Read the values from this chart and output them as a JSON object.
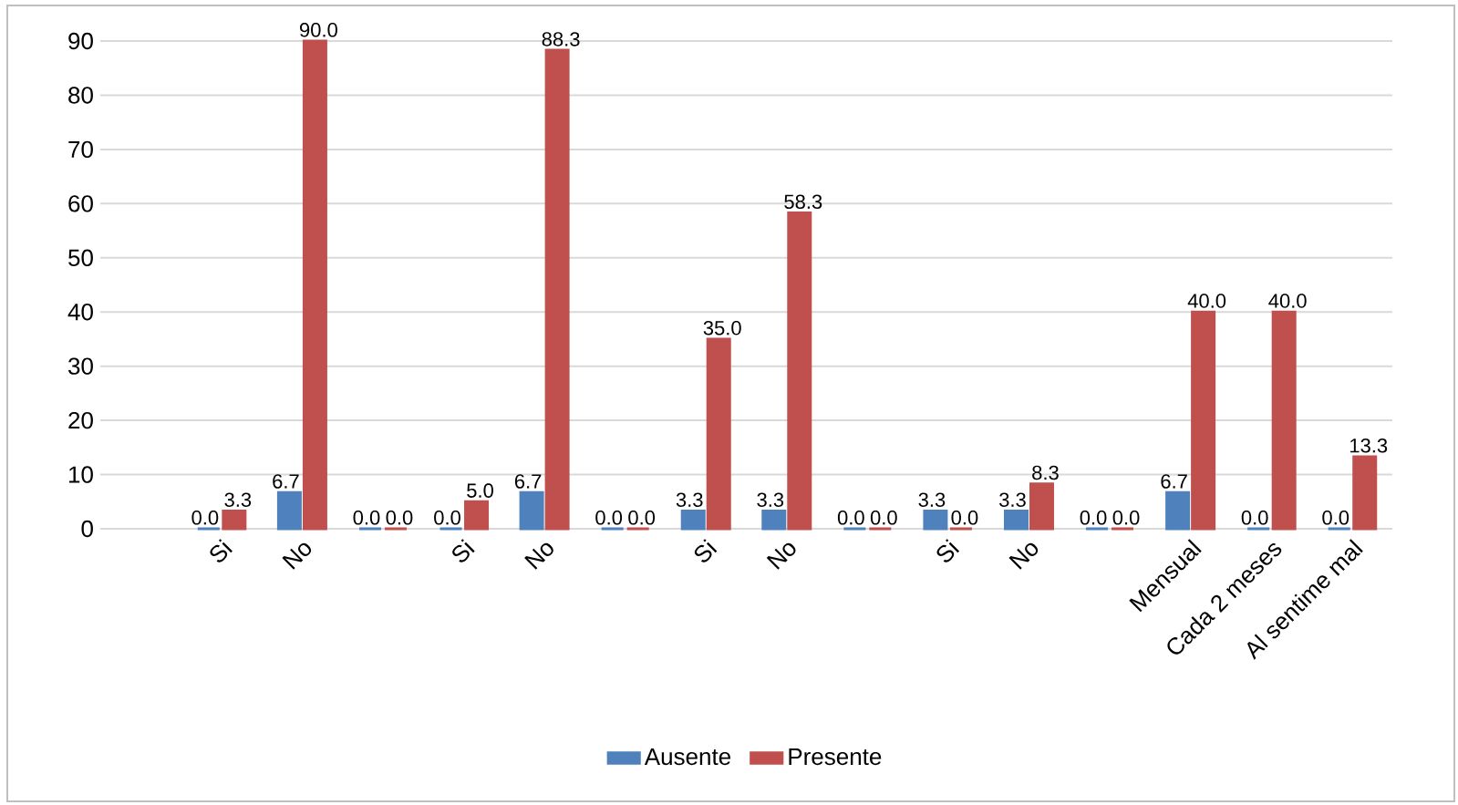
{
  "chart_data": {
    "type": "bar",
    "categories": [
      null,
      "Si",
      "No",
      null,
      "Si",
      "No",
      null,
      "Si",
      "No",
      null,
      "Si",
      "No",
      null,
      "Mensual",
      "Cada 2 meses",
      "Al sentime mal"
    ],
    "series": [
      {
        "name": "Ausente",
        "color": "#4f81bd",
        "values": [
          null,
          0.0,
          6.7,
          0.0,
          0.0,
          6.7,
          0.0,
          3.3,
          3.3,
          0.0,
          3.3,
          3.3,
          0.0,
          6.7,
          0.0,
          0.0
        ],
        "value_labels": [
          null,
          "0.0",
          "6.7",
          "0.0",
          "0.0",
          "6.7",
          "0.0",
          "3.3",
          "3.3",
          "0.0",
          "3.3",
          "3.3",
          "0.0",
          "6.7",
          "0.0",
          "0.0"
        ]
      },
      {
        "name": "Presente",
        "color": "#c0504d",
        "values": [
          null,
          3.3,
          90.0,
          0.0,
          5.0,
          88.3,
          0.0,
          35.0,
          58.3,
          0.0,
          0.0,
          8.3,
          0.0,
          40.0,
          40.0,
          13.3
        ],
        "value_labels": [
          null,
          "3.3",
          "90.0",
          "0.0",
          "5.0",
          "88.3",
          "0.0",
          "35.0",
          "58.3",
          "0.0",
          "0.0",
          "8.3",
          "0.0",
          "40.0",
          "40.0",
          "13.3"
        ]
      }
    ],
    "ylim": [
      0,
      90
    ],
    "yticks": [
      0,
      10,
      20,
      30,
      40,
      50,
      60,
      70,
      80,
      90
    ],
    "grid": "y",
    "legend": "bottom"
  }
}
